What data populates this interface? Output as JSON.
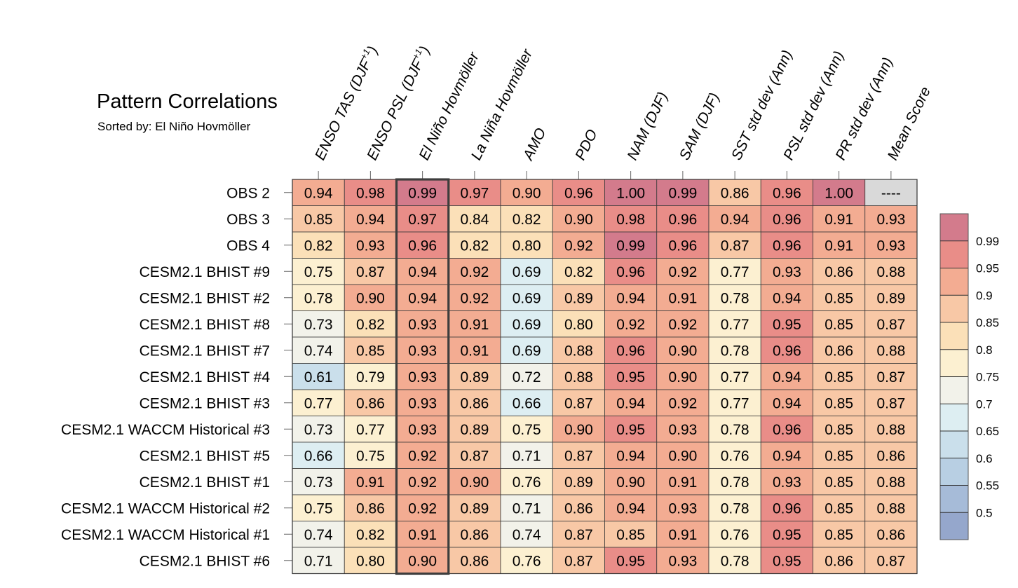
{
  "chart_data": {
    "type": "heatmap",
    "title": "Pattern Correlations",
    "subtitle": "Sorted by: El Niño Hovmöller",
    "columns": [
      {
        "main": "ENSO TAS (DJF",
        "sup": "+1",
        "tail": ")"
      },
      {
        "main": "ENSO PSL (DJF",
        "sup": "+1",
        "tail": ")"
      },
      {
        "main": "El Niño Hovmöller",
        "sup": "",
        "tail": ""
      },
      {
        "main": "La Niña Hovmöller",
        "sup": "",
        "tail": ""
      },
      {
        "main": "AMO",
        "sup": "",
        "tail": ""
      },
      {
        "main": "PDO",
        "sup": "",
        "tail": ""
      },
      {
        "main": "NAM (DJF)",
        "sup": "",
        "tail": ""
      },
      {
        "main": "SAM (DJF)",
        "sup": "",
        "tail": ""
      },
      {
        "main": "SST std dev (Ann)",
        "sup": "",
        "tail": ""
      },
      {
        "main": "PSL std dev (Ann)",
        "sup": "",
        "tail": ""
      },
      {
        "main": "PR std dev (Ann)",
        "sup": "",
        "tail": ""
      },
      {
        "main": "Mean Score",
        "sup": "",
        "tail": ""
      }
    ],
    "highlight_column": 2,
    "missing_label": "----",
    "rows": [
      {
        "name": "OBS 2",
        "values": [
          "0.94",
          "0.98",
          "0.99",
          "0.97",
          "0.90",
          "0.96",
          "1.00",
          "0.99",
          "0.86",
          "0.96",
          "1.00",
          null
        ]
      },
      {
        "name": "OBS 3",
        "values": [
          "0.85",
          "0.94",
          "0.97",
          "0.84",
          "0.82",
          "0.90",
          "0.98",
          "0.96",
          "0.94",
          "0.96",
          "0.91",
          "0.93"
        ]
      },
      {
        "name": "OBS 4",
        "values": [
          "0.82",
          "0.93",
          "0.96",
          "0.82",
          "0.80",
          "0.92",
          "0.99",
          "0.96",
          "0.87",
          "0.96",
          "0.91",
          "0.93"
        ]
      },
      {
        "name": "CESM2.1 BHIST #9",
        "values": [
          "0.75",
          "0.87",
          "0.94",
          "0.92",
          "0.69",
          "0.82",
          "0.96",
          "0.92",
          "0.77",
          "0.93",
          "0.86",
          "0.88"
        ]
      },
      {
        "name": "CESM2.1 BHIST #2",
        "values": [
          "0.78",
          "0.90",
          "0.94",
          "0.92",
          "0.69",
          "0.89",
          "0.94",
          "0.91",
          "0.78",
          "0.94",
          "0.85",
          "0.89"
        ]
      },
      {
        "name": "CESM2.1 BHIST #8",
        "values": [
          "0.73",
          "0.82",
          "0.93",
          "0.91",
          "0.69",
          "0.80",
          "0.92",
          "0.92",
          "0.77",
          "0.95",
          "0.85",
          "0.87"
        ]
      },
      {
        "name": "CESM2.1 BHIST #7",
        "values": [
          "0.74",
          "0.85",
          "0.93",
          "0.91",
          "0.69",
          "0.88",
          "0.96",
          "0.90",
          "0.78",
          "0.96",
          "0.86",
          "0.88"
        ]
      },
      {
        "name": "CESM2.1 BHIST #4",
        "values": [
          "0.61",
          "0.79",
          "0.93",
          "0.89",
          "0.72",
          "0.88",
          "0.95",
          "0.90",
          "0.77",
          "0.94",
          "0.85",
          "0.87"
        ]
      },
      {
        "name": "CESM2.1 BHIST #3",
        "values": [
          "0.77",
          "0.86",
          "0.93",
          "0.86",
          "0.66",
          "0.87",
          "0.94",
          "0.92",
          "0.77",
          "0.94",
          "0.85",
          "0.87"
        ]
      },
      {
        "name": "CESM2.1 WACCM Historical #3",
        "values": [
          "0.73",
          "0.77",
          "0.93",
          "0.89",
          "0.75",
          "0.90",
          "0.95",
          "0.93",
          "0.78",
          "0.96",
          "0.85",
          "0.88"
        ]
      },
      {
        "name": "CESM2.1 BHIST #5",
        "values": [
          "0.66",
          "0.75",
          "0.92",
          "0.87",
          "0.71",
          "0.87",
          "0.94",
          "0.90",
          "0.76",
          "0.94",
          "0.85",
          "0.86"
        ]
      },
      {
        "name": "CESM2.1 BHIST #1",
        "values": [
          "0.73",
          "0.91",
          "0.92",
          "0.90",
          "0.76",
          "0.89",
          "0.90",
          "0.91",
          "0.78",
          "0.93",
          "0.85",
          "0.88"
        ]
      },
      {
        "name": "CESM2.1 WACCM Historical #2",
        "values": [
          "0.75",
          "0.86",
          "0.92",
          "0.89",
          "0.71",
          "0.86",
          "0.94",
          "0.93",
          "0.78",
          "0.96",
          "0.85",
          "0.88"
        ]
      },
      {
        "name": "CESM2.1 WACCM Historical #1",
        "values": [
          "0.74",
          "0.82",
          "0.91",
          "0.86",
          "0.74",
          "0.87",
          "0.85",
          "0.91",
          "0.76",
          "0.95",
          "0.85",
          "0.86"
        ]
      },
      {
        "name": "CESM2.1 BHIST #6",
        "values": [
          "0.71",
          "0.80",
          "0.90",
          "0.86",
          "0.76",
          "0.87",
          "0.95",
          "0.93",
          "0.78",
          "0.95",
          "0.86",
          "0.87"
        ]
      }
    ],
    "colorbar": {
      "levels": [
        "0.5",
        "0.55",
        "0.6",
        "0.65",
        "0.7",
        "0.75",
        "0.8",
        "0.85",
        "0.9",
        "0.95",
        "0.99"
      ],
      "thresholds": [
        0.5,
        0.55,
        0.6,
        0.65,
        0.7,
        0.75,
        0.8,
        0.85,
        0.9,
        0.95,
        0.99
      ],
      "colors": [
        "#95a7cc",
        "#a6bbd8",
        "#b8cfe3",
        "#cadfeb",
        "#ddeef2",
        "#f2f2ea",
        "#fcf0d1",
        "#fbe0b8",
        "#f8c8a6",
        "#f3ac92",
        "#e98d88",
        "#d37b8c"
      ],
      "missing_color": "#d9d9d9"
    }
  }
}
